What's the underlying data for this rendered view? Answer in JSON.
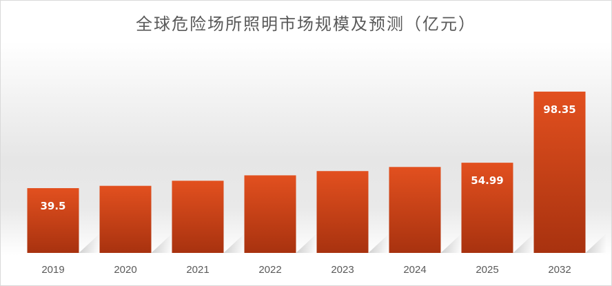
{
  "chart_data": {
    "type": "bar",
    "title": "全球危险场所照明市场规模及预测（亿元）",
    "categories": [
      "2019",
      "2020",
      "2021",
      "2022",
      "2023",
      "2024",
      "2025",
      "2032"
    ],
    "values": [
      39.5,
      40.9,
      44.0,
      47.3,
      49.9,
      52.4,
      54.99,
      98.35
    ],
    "data_labels": [
      "39.5",
      "",
      "",
      "",
      "",
      "",
      "54.99",
      "98.35"
    ],
    "xlabel": "",
    "ylabel": "",
    "ylim": [
      0,
      100
    ],
    "grid": false,
    "legend": "none",
    "colors": {
      "bar_top": "#e2501f",
      "bar_bottom": "#a8320f",
      "tick_text": "#595959",
      "label_text": "#ffffff"
    }
  }
}
